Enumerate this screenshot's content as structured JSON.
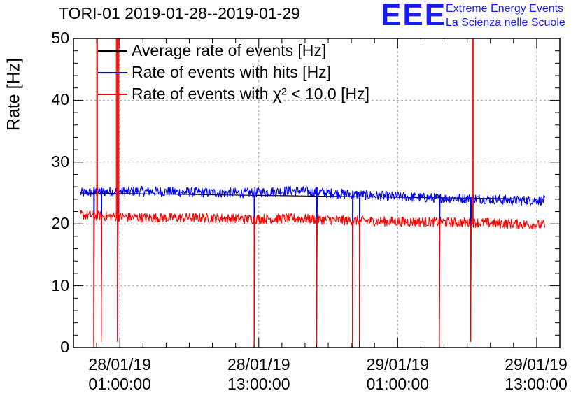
{
  "chart_data": {
    "type": "line",
    "title": "TORI-01 2019-01-28--2019-01-29",
    "ylabel": "Rate [Hz]",
    "xlabel": "",
    "ylim": [
      0,
      50
    ],
    "yticks": [
      "0",
      "10",
      "20",
      "30",
      "40",
      "50"
    ],
    "x_range_hours_from_2019_01_28_00_00": [
      -3,
      39
    ],
    "xticks": [
      {
        "date": "28/01/19",
        "time": "01:00:00"
      },
      {
        "date": "28/01/19",
        "time": "13:00:00"
      },
      {
        "date": "29/01/19",
        "time": "01:00:00"
      },
      {
        "date": "29/01/19",
        "time": "13:00:00"
      }
    ],
    "grid": true,
    "legend_position": "top-left",
    "series": [
      {
        "name": "Average rate of events [Hz]",
        "color": "#000000",
        "x_hours": [
          -2.4,
          37.7
        ],
        "values": [
          25.0,
          24.0
        ],
        "dropouts": [
          {
            "x": -1.25,
            "y": 0.5
          },
          {
            "x": -0.6,
            "y": 2
          },
          {
            "x": 0.8,
            "y": 1
          },
          {
            "x": 12.6,
            "y": 0
          },
          {
            "x": 18.0,
            "y": 0
          },
          {
            "x": 21.1,
            "y": 0
          },
          {
            "x": 21.7,
            "y": 0
          },
          {
            "x": 28.6,
            "y": 0
          },
          {
            "x": 31.3,
            "y": 1
          }
        ]
      },
      {
        "name": "Rate of events with hits [Hz]",
        "color": "#0000ff",
        "x_hours": [
          -2.4,
          -1.0,
          3.0,
          8.0,
          12.0,
          16.0,
          20.0,
          24.0,
          28.0,
          32.0,
          35.0,
          37.7
        ],
        "values": [
          25.0,
          25.2,
          25.3,
          25.1,
          25.0,
          25.4,
          24.9,
          24.5,
          24.2,
          24.1,
          23.8,
          23.8
        ],
        "noise_amplitude": 0.8,
        "dropouts": [
          {
            "x": -1.25,
            "y": 1
          },
          {
            "x": -0.6,
            "y": 2
          },
          {
            "x": 0.8,
            "y": 1
          },
          {
            "x": 12.6,
            "y": 14
          },
          {
            "x": 18.0,
            "y": 14
          },
          {
            "x": 21.1,
            "y": 15
          },
          {
            "x": 21.7,
            "y": 13
          },
          {
            "x": 28.6,
            "y": 12
          },
          {
            "x": 31.3,
            "y": 17
          }
        ]
      },
      {
        "name": "Rate of events with χ² < 10.0 [Hz]",
        "color": "#ff0000",
        "x_hours": [
          -2.4,
          -1.0,
          3.0,
          8.0,
          12.0,
          16.0,
          20.0,
          24.0,
          28.0,
          32.0,
          35.0,
          37.7
        ],
        "values": [
          21.5,
          21.3,
          21.0,
          21.0,
          20.8,
          20.9,
          20.6,
          20.4,
          20.3,
          20.2,
          20.0,
          19.8
        ],
        "noise_amplitude": 0.8,
        "dropouts": [
          {
            "x": -1.25,
            "y": 0
          },
          {
            "x": -0.6,
            "y": 1
          },
          {
            "x": 0.8,
            "y": 1
          },
          {
            "x": 12.6,
            "y": 0.5
          },
          {
            "x": 18.0,
            "y": 0.5
          },
          {
            "x": 21.1,
            "y": 0.5
          },
          {
            "x": 21.7,
            "y": 1
          },
          {
            "x": 28.6,
            "y": 0.5
          },
          {
            "x": 31.3,
            "y": 1
          }
        ],
        "spikes": [
          {
            "x": -1.0,
            "y": 50
          },
          {
            "x": 0.7,
            "y": 50
          },
          {
            "x": 0.85,
            "y": 50
          },
          {
            "x": 31.45,
            "y": 50
          }
        ]
      }
    ]
  },
  "legend": {
    "items": [
      {
        "label": "Average rate of events [Hz]",
        "color": "#000000"
      },
      {
        "label": "Rate of events with hits [Hz]",
        "color": "#0000ff"
      },
      {
        "label": "Rate of events with χ² < 10.0 [Hz]",
        "color": "#ff0000"
      }
    ]
  },
  "logo": {
    "mark": "EEE",
    "line1": "Extreme Energy Events",
    "line2": "La Scienza nelle Scuole",
    "color": "#1a1aff"
  }
}
